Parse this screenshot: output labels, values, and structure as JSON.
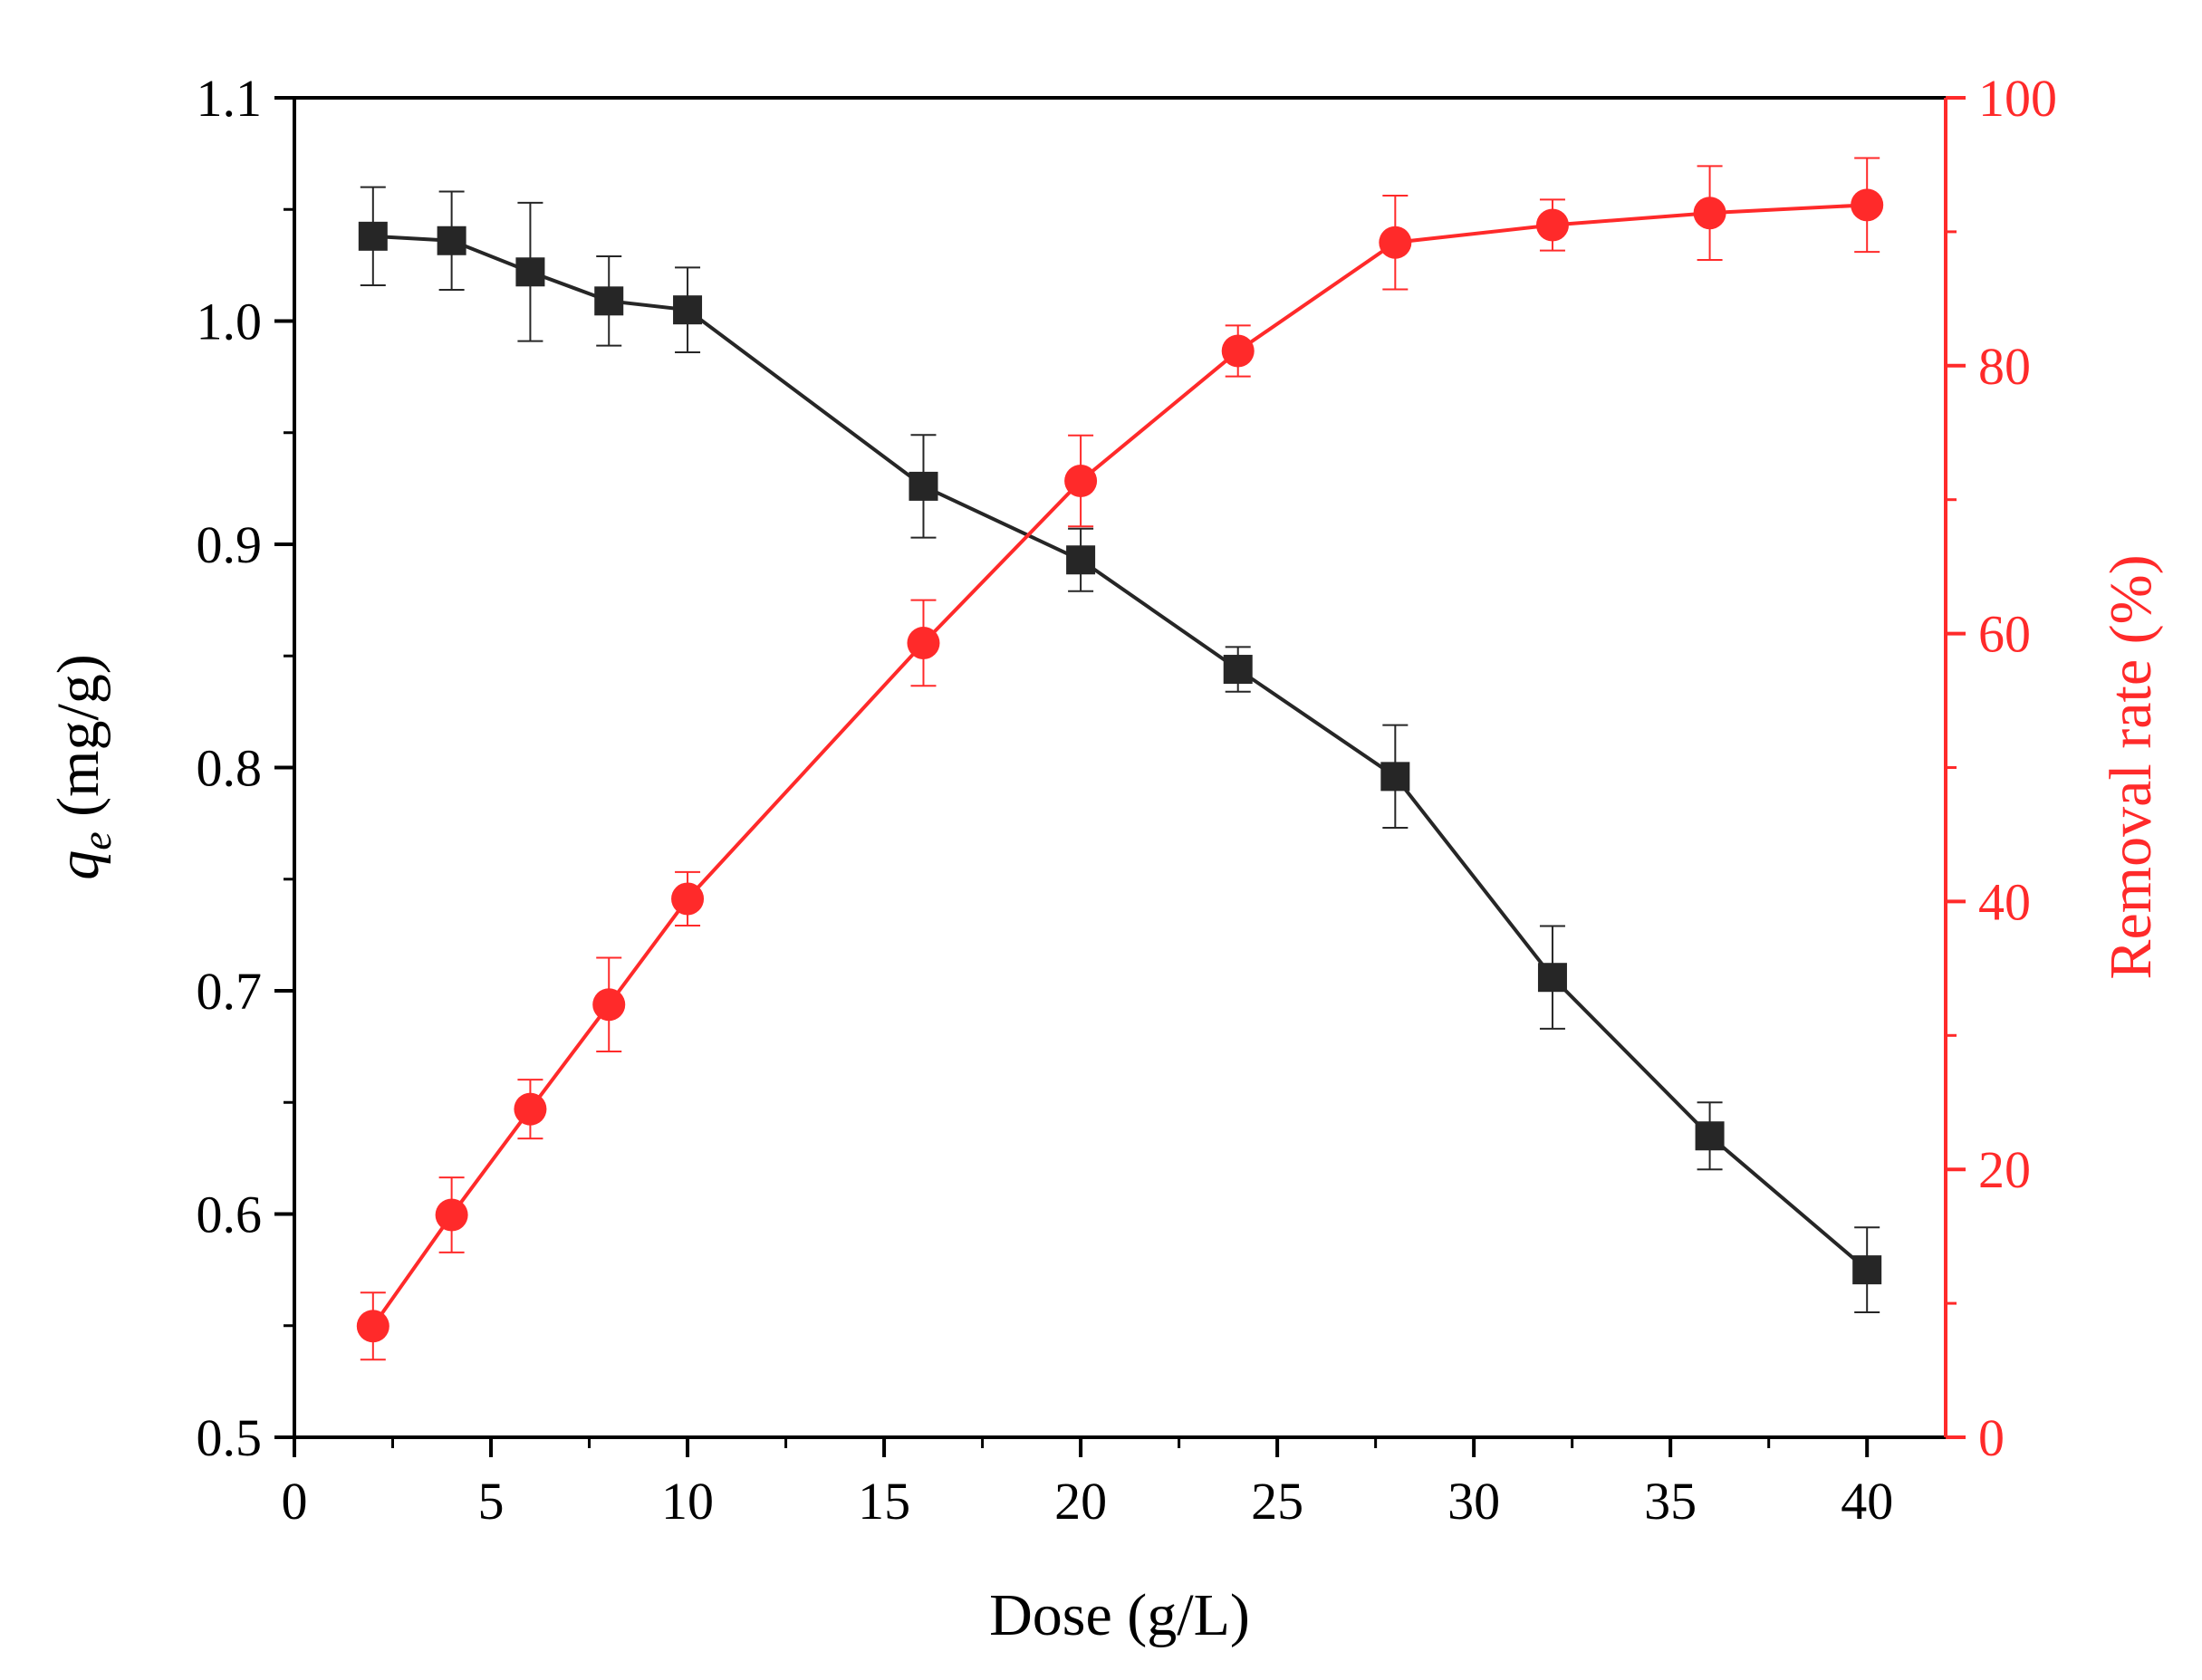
{
  "chart_data": {
    "type": "line",
    "title": "",
    "xlabel": "Dose (g/L)",
    "ylabel": {
      "symbol": "q",
      "subscript": "e",
      "unit": " (mg/g)"
    },
    "y2label": "Removal rate (%)",
    "xlim": [
      0,
      42
    ],
    "ylim": [
      0.5,
      1.1
    ],
    "y2lim": [
      0,
      100
    ],
    "x_ticks": [
      0,
      5,
      10,
      15,
      20,
      25,
      30,
      35,
      40
    ],
    "y_ticks": [
      "0.5",
      "0.6",
      "0.7",
      "0.8",
      "0.9",
      "1.0",
      "1.1"
    ],
    "y2_ticks": [
      0,
      20,
      40,
      60,
      80,
      100
    ],
    "x": [
      2,
      4,
      6,
      8,
      10,
      16,
      20,
      24,
      28,
      32,
      36,
      40
    ],
    "series": [
      {
        "name": "qe",
        "axis": "left",
        "color": "#262626",
        "marker": "square",
        "values": [
          1.038,
          1.036,
          1.022,
          1.009,
          1.005,
          0.926,
          0.893,
          0.844,
          0.796,
          0.706,
          0.635,
          0.575
        ],
        "errors": [
          0.022,
          0.022,
          0.031,
          0.02,
          0.019,
          0.023,
          0.014,
          0.01,
          0.023,
          0.023,
          0.015,
          0.019
        ]
      },
      {
        "name": "Removal rate",
        "axis": "right",
        "color": "#ff2a2a",
        "marker": "circle",
        "values": [
          8.3,
          16.6,
          24.5,
          32.3,
          40.2,
          59.3,
          71.4,
          81.1,
          89.2,
          90.5,
          91.4,
          92.0
        ],
        "errors": [
          2.5,
          2.8,
          2.2,
          3.5,
          2.0,
          3.2,
          3.4,
          1.9,
          3.5,
          1.9,
          3.5,
          3.5
        ]
      }
    ]
  }
}
